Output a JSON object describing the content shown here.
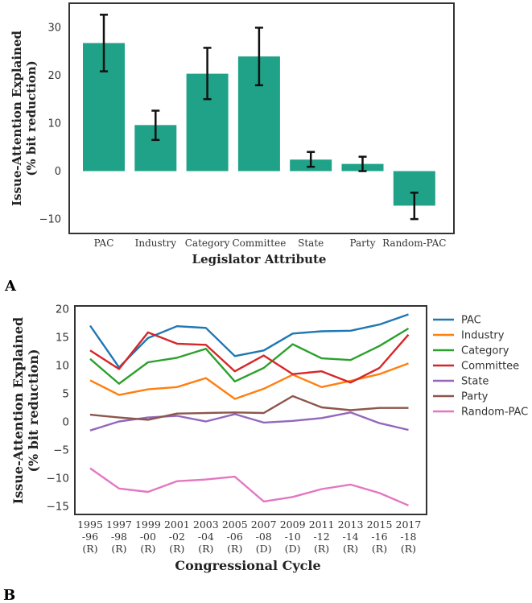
{
  "chart_data": [
    {
      "panel": "A",
      "type": "bar",
      "title": "",
      "xlabel": "Legislator Attribute",
      "ylabel_line1": "Issue-Attention Explained",
      "ylabel_line2": "(% bit reduction)",
      "categories": [
        "PAC",
        "Industry",
        "Category",
        "Committee",
        "State",
        "Party",
        "Random-PAC"
      ],
      "values": [
        26.7,
        9.6,
        20.3,
        23.9,
        2.4,
        1.5,
        -7.2
      ],
      "error_low": [
        20.8,
        6.5,
        15.0,
        17.9,
        0.9,
        0.0,
        -10.0
      ],
      "error_high": [
        32.6,
        12.6,
        25.7,
        29.9,
        4.0,
        3.0,
        -4.5
      ],
      "yticks": [
        -10,
        0,
        10,
        20,
        30
      ],
      "ylim": [
        -13,
        35
      ],
      "bar_color": "#1fa287",
      "grid": false
    },
    {
      "panel": "B",
      "type": "line",
      "title": "",
      "xlabel": "Congressional Cycle",
      "ylabel_line1": "Issue-Attention Explained",
      "ylabel_line2": "(% bit reduction)",
      "x_years": [
        "1995",
        "1997",
        "1999",
        "2001",
        "2003",
        "2005",
        "2007",
        "2009",
        "2011",
        "2013",
        "2015",
        "2017"
      ],
      "x_ranges": [
        "-96",
        "-98",
        "-00",
        "-02",
        "-04",
        "-06",
        "-08",
        "-10",
        "-12",
        "-14",
        "-16",
        "-18"
      ],
      "x_party": [
        "(R)",
        "(R)",
        "(R)",
        "(R)",
        "(R)",
        "(R)",
        "(D)",
        "(D)",
        "(R)",
        "(R)",
        "(R)",
        "(R)"
      ],
      "yticks": [
        -15,
        -10,
        -5,
        0,
        5,
        10,
        15,
        20
      ],
      "ylim": [
        -16.5,
        20.5
      ],
      "legend_position": "right",
      "series": [
        {
          "name": "PAC",
          "color": "#1f77b4",
          "values": [
            17.0,
            9.6,
            14.8,
            16.9,
            16.6,
            11.6,
            12.6,
            15.6,
            16.0,
            16.1,
            17.2,
            19.0
          ]
        },
        {
          "name": "Industry",
          "color": "#ff7f0e",
          "values": [
            7.3,
            4.7,
            5.7,
            6.1,
            7.7,
            4.0,
            5.8,
            8.3,
            6.1,
            7.2,
            8.4,
            10.3
          ]
        },
        {
          "name": "Category",
          "color": "#2ca02c",
          "values": [
            11.1,
            6.7,
            10.5,
            11.3,
            12.9,
            7.1,
            9.5,
            13.7,
            11.2,
            10.9,
            13.4,
            16.5
          ]
        },
        {
          "name": "Committee",
          "color": "#d62728",
          "values": [
            12.6,
            9.3,
            15.8,
            13.8,
            13.6,
            8.9,
            11.7,
            8.4,
            8.9,
            6.9,
            9.5,
            15.4
          ]
        },
        {
          "name": "State",
          "color": "#9467bd",
          "values": [
            -1.6,
            0.0,
            0.7,
            1.0,
            0.0,
            1.3,
            -0.2,
            0.1,
            0.6,
            1.6,
            -0.3,
            -1.5
          ]
        },
        {
          "name": "Party",
          "color": "#8c564b",
          "values": [
            1.2,
            0.7,
            0.3,
            1.4,
            1.5,
            1.6,
            1.5,
            4.5,
            2.5,
            2.0,
            2.4,
            2.4
          ]
        },
        {
          "name": "Random-PAC",
          "color": "#e377c2",
          "values": [
            -8.3,
            -11.9,
            -12.5,
            -10.6,
            -10.3,
            -9.8,
            -14.2,
            -13.4,
            -12.0,
            -11.2,
            -12.7,
            -14.9
          ]
        }
      ]
    }
  ],
  "labels": {
    "panel_a": "A",
    "panel_b": "B"
  }
}
